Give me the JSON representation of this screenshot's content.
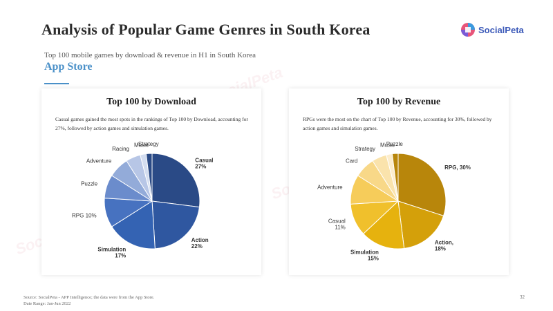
{
  "slide": {
    "title": "Analysis of Popular Game Genres in South Korea",
    "subtitle": "Top 100 mobile games by download & revenue in H1 in South Korea",
    "store": "App Store",
    "source": "Source: SocialPeta - APP Intelligence; the data were from the App Store.",
    "date_range": "Date Range: Jan-Jun 2022",
    "page": "32",
    "logo_text": "SocialPeta"
  },
  "colors": {
    "accent": "#4a90c8",
    "download_palette": [
      "#2a4a86",
      "#2f57a0",
      "#3463b3",
      "#4772c0",
      "#6b8ccc",
      "#93abd9",
      "#b7c6e6",
      "#d3ddf0"
    ],
    "revenue_palette": [
      "#b8860b",
      "#d4a00a",
      "#e6b20e",
      "#f0c02c",
      "#f6cc5a",
      "#f8d888",
      "#fae3ac",
      "#fcedcc"
    ]
  },
  "chart_data": [
    {
      "type": "pie",
      "title": "Top 100 by Download",
      "description": "Casual games gained the most spots in the rankings of Top 100 by Download, accounting for 27%, followed by action games and simulation games.",
      "slices": [
        {
          "name": "Casual",
          "value": 27,
          "label_lines": [
            "Casual",
            "27%"
          ],
          "bold": true
        },
        {
          "name": "Action",
          "value": 22,
          "label_lines": [
            "Action",
            "22%"
          ],
          "bold": true
        },
        {
          "name": "Simulation",
          "value": 17,
          "label_lines": [
            "Simulation",
            "17%"
          ],
          "bold": true
        },
        {
          "name": "RPG",
          "value": 10,
          "label_lines": [
            "RPG 10%"
          ],
          "bold": false
        },
        {
          "name": "Puzzle",
          "value": 8,
          "label_lines": [
            "Puzzle"
          ],
          "bold": false
        },
        {
          "name": "Adventure",
          "value": 7,
          "label_lines": [
            "Adventure"
          ],
          "bold": false
        },
        {
          "name": "Racing",
          "value": 5,
          "label_lines": [
            "Racing"
          ],
          "bold": false
        },
        {
          "name": "Music",
          "value": 2,
          "label_lines": [
            "Music"
          ],
          "bold": false
        },
        {
          "name": "Strategy",
          "value": 2,
          "label_lines": [
            "Strategy"
          ],
          "bold": false
        }
      ]
    },
    {
      "type": "pie",
      "title": "Top 100 by Revenue",
      "description": "RPGs were the most on the chart of Top 100 by Revenue, accounting for 30%, followed by action games and simulation games.",
      "slices": [
        {
          "name": "RPG",
          "value": 30,
          "label_lines": [
            "RPG, 30%"
          ],
          "bold": true
        },
        {
          "name": "Action",
          "value": 18,
          "label_lines": [
            "Action,",
            "18%"
          ],
          "bold": true
        },
        {
          "name": "Simulation",
          "value": 15,
          "label_lines": [
            "Simulation",
            "15%"
          ],
          "bold": true
        },
        {
          "name": "Casual",
          "value": 11,
          "label_lines": [
            "Casual",
            "11%"
          ],
          "bold": false
        },
        {
          "name": "Adventure",
          "value": 10,
          "label_lines": [
            "Adventure"
          ],
          "bold": false
        },
        {
          "name": "Card",
          "value": 7,
          "label_lines": [
            "Card"
          ],
          "bold": false
        },
        {
          "name": "Strategy",
          "value": 5,
          "label_lines": [
            "Strategy"
          ],
          "bold": false
        },
        {
          "name": "Music",
          "value": 2,
          "label_lines": [
            "Music"
          ],
          "bold": false
        },
        {
          "name": "Puzzle",
          "value": 2,
          "label_lines": [
            "Puzzle"
          ],
          "bold": false
        }
      ]
    }
  ]
}
